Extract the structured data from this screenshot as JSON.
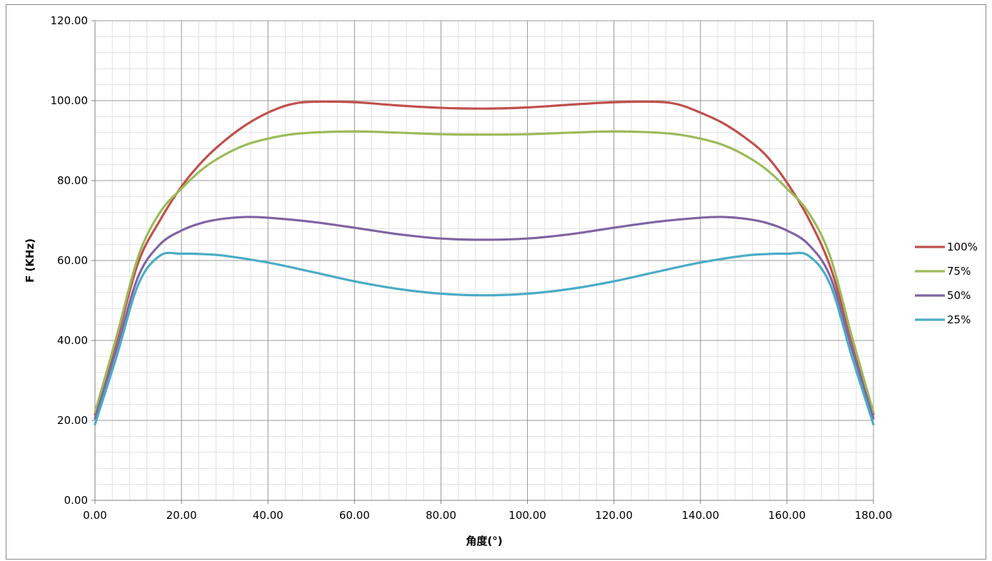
{
  "chart_data": {
    "type": "line",
    "title": "",
    "xlabel": "角度(°)",
    "ylabel": "F (KHz)",
    "xlim": [
      0,
      180
    ],
    "ylim": [
      0,
      120
    ],
    "x_ticks": [
      "0.00",
      "20.00",
      "40.00",
      "60.00",
      "80.00",
      "100.00",
      "120.00",
      "140.00",
      "160.00",
      "180.00"
    ],
    "y_ticks": [
      "0.00",
      "20.00",
      "40.00",
      "60.00",
      "80.00",
      "100.00",
      "120.00"
    ],
    "grid": true,
    "legend_position": "right",
    "series": [
      {
        "name": "100%",
        "color": "#c0504d",
        "points": [
          [
            0,
            21.5
          ],
          [
            5,
            40
          ],
          [
            10,
            59.5
          ],
          [
            15,
            70
          ],
          [
            20,
            78.5
          ],
          [
            25,
            85
          ],
          [
            30,
            90
          ],
          [
            35,
            94
          ],
          [
            40,
            97
          ],
          [
            45,
            99
          ],
          [
            50,
            99.7
          ],
          [
            60,
            99.6
          ],
          [
            70,
            98.8
          ],
          [
            80,
            98.2
          ],
          [
            90,
            98
          ],
          [
            100,
            98.3
          ],
          [
            110,
            99
          ],
          [
            120,
            99.6
          ],
          [
            130,
            99.7
          ],
          [
            135,
            99
          ],
          [
            140,
            97
          ],
          [
            145,
            94.5
          ],
          [
            150,
            91
          ],
          [
            155,
            86.5
          ],
          [
            160,
            79.5
          ],
          [
            165,
            70.5
          ],
          [
            170,
            58.5
          ],
          [
            175,
            40
          ],
          [
            180,
            21.5
          ]
        ]
      },
      {
        "name": "75%",
        "color": "#9bbb59",
        "points": [
          [
            0,
            22
          ],
          [
            5,
            41
          ],
          [
            10,
            61
          ],
          [
            15,
            72
          ],
          [
            20,
            78
          ],
          [
            25,
            83
          ],
          [
            30,
            86.5
          ],
          [
            35,
            89
          ],
          [
            40,
            90.5
          ],
          [
            45,
            91.5
          ],
          [
            50,
            92
          ],
          [
            60,
            92.3
          ],
          [
            70,
            92
          ],
          [
            80,
            91.6
          ],
          [
            90,
            91.5
          ],
          [
            100,
            91.6
          ],
          [
            110,
            92
          ],
          [
            120,
            92.3
          ],
          [
            130,
            92
          ],
          [
            135,
            91.5
          ],
          [
            140,
            90.5
          ],
          [
            145,
            89
          ],
          [
            150,
            86.5
          ],
          [
            155,
            83
          ],
          [
            160,
            78
          ],
          [
            165,
            72
          ],
          [
            170,
            61
          ],
          [
            175,
            41
          ],
          [
            180,
            22
          ]
        ]
      },
      {
        "name": "50%",
        "color": "#8064a2",
        "points": [
          [
            0,
            20.5
          ],
          [
            5,
            38
          ],
          [
            10,
            56
          ],
          [
            15,
            64
          ],
          [
            20,
            67.5
          ],
          [
            25,
            69.5
          ],
          [
            30,
            70.5
          ],
          [
            35,
            70.9
          ],
          [
            40,
            70.7
          ],
          [
            50,
            69.7
          ],
          [
            60,
            68.2
          ],
          [
            70,
            66.6
          ],
          [
            80,
            65.5
          ],
          [
            90,
            65.2
          ],
          [
            100,
            65.5
          ],
          [
            110,
            66.6
          ],
          [
            120,
            68.2
          ],
          [
            130,
            69.7
          ],
          [
            140,
            70.7
          ],
          [
            145,
            70.9
          ],
          [
            150,
            70.5
          ],
          [
            155,
            69.5
          ],
          [
            160,
            67.5
          ],
          [
            165,
            64
          ],
          [
            170,
            56
          ],
          [
            175,
            38
          ],
          [
            180,
            20.5
          ]
        ]
      },
      {
        "name": "25%",
        "color": "#4bacc6",
        "points": [
          [
            0,
            19
          ],
          [
            5,
            36
          ],
          [
            10,
            54
          ],
          [
            15,
            61.2
          ],
          [
            20,
            61.7
          ],
          [
            25,
            61.6
          ],
          [
            30,
            61.2
          ],
          [
            40,
            59.5
          ],
          [
            50,
            57.2
          ],
          [
            60,
            54.8
          ],
          [
            70,
            52.9
          ],
          [
            80,
            51.7
          ],
          [
            90,
            51.3
          ],
          [
            100,
            51.7
          ],
          [
            110,
            52.9
          ],
          [
            120,
            54.8
          ],
          [
            130,
            57.2
          ],
          [
            140,
            59.5
          ],
          [
            150,
            61.2
          ],
          [
            155,
            61.6
          ],
          [
            160,
            61.7
          ],
          [
            165,
            61.2
          ],
          [
            170,
            54
          ],
          [
            175,
            36
          ],
          [
            180,
            19
          ]
        ]
      }
    ]
  }
}
